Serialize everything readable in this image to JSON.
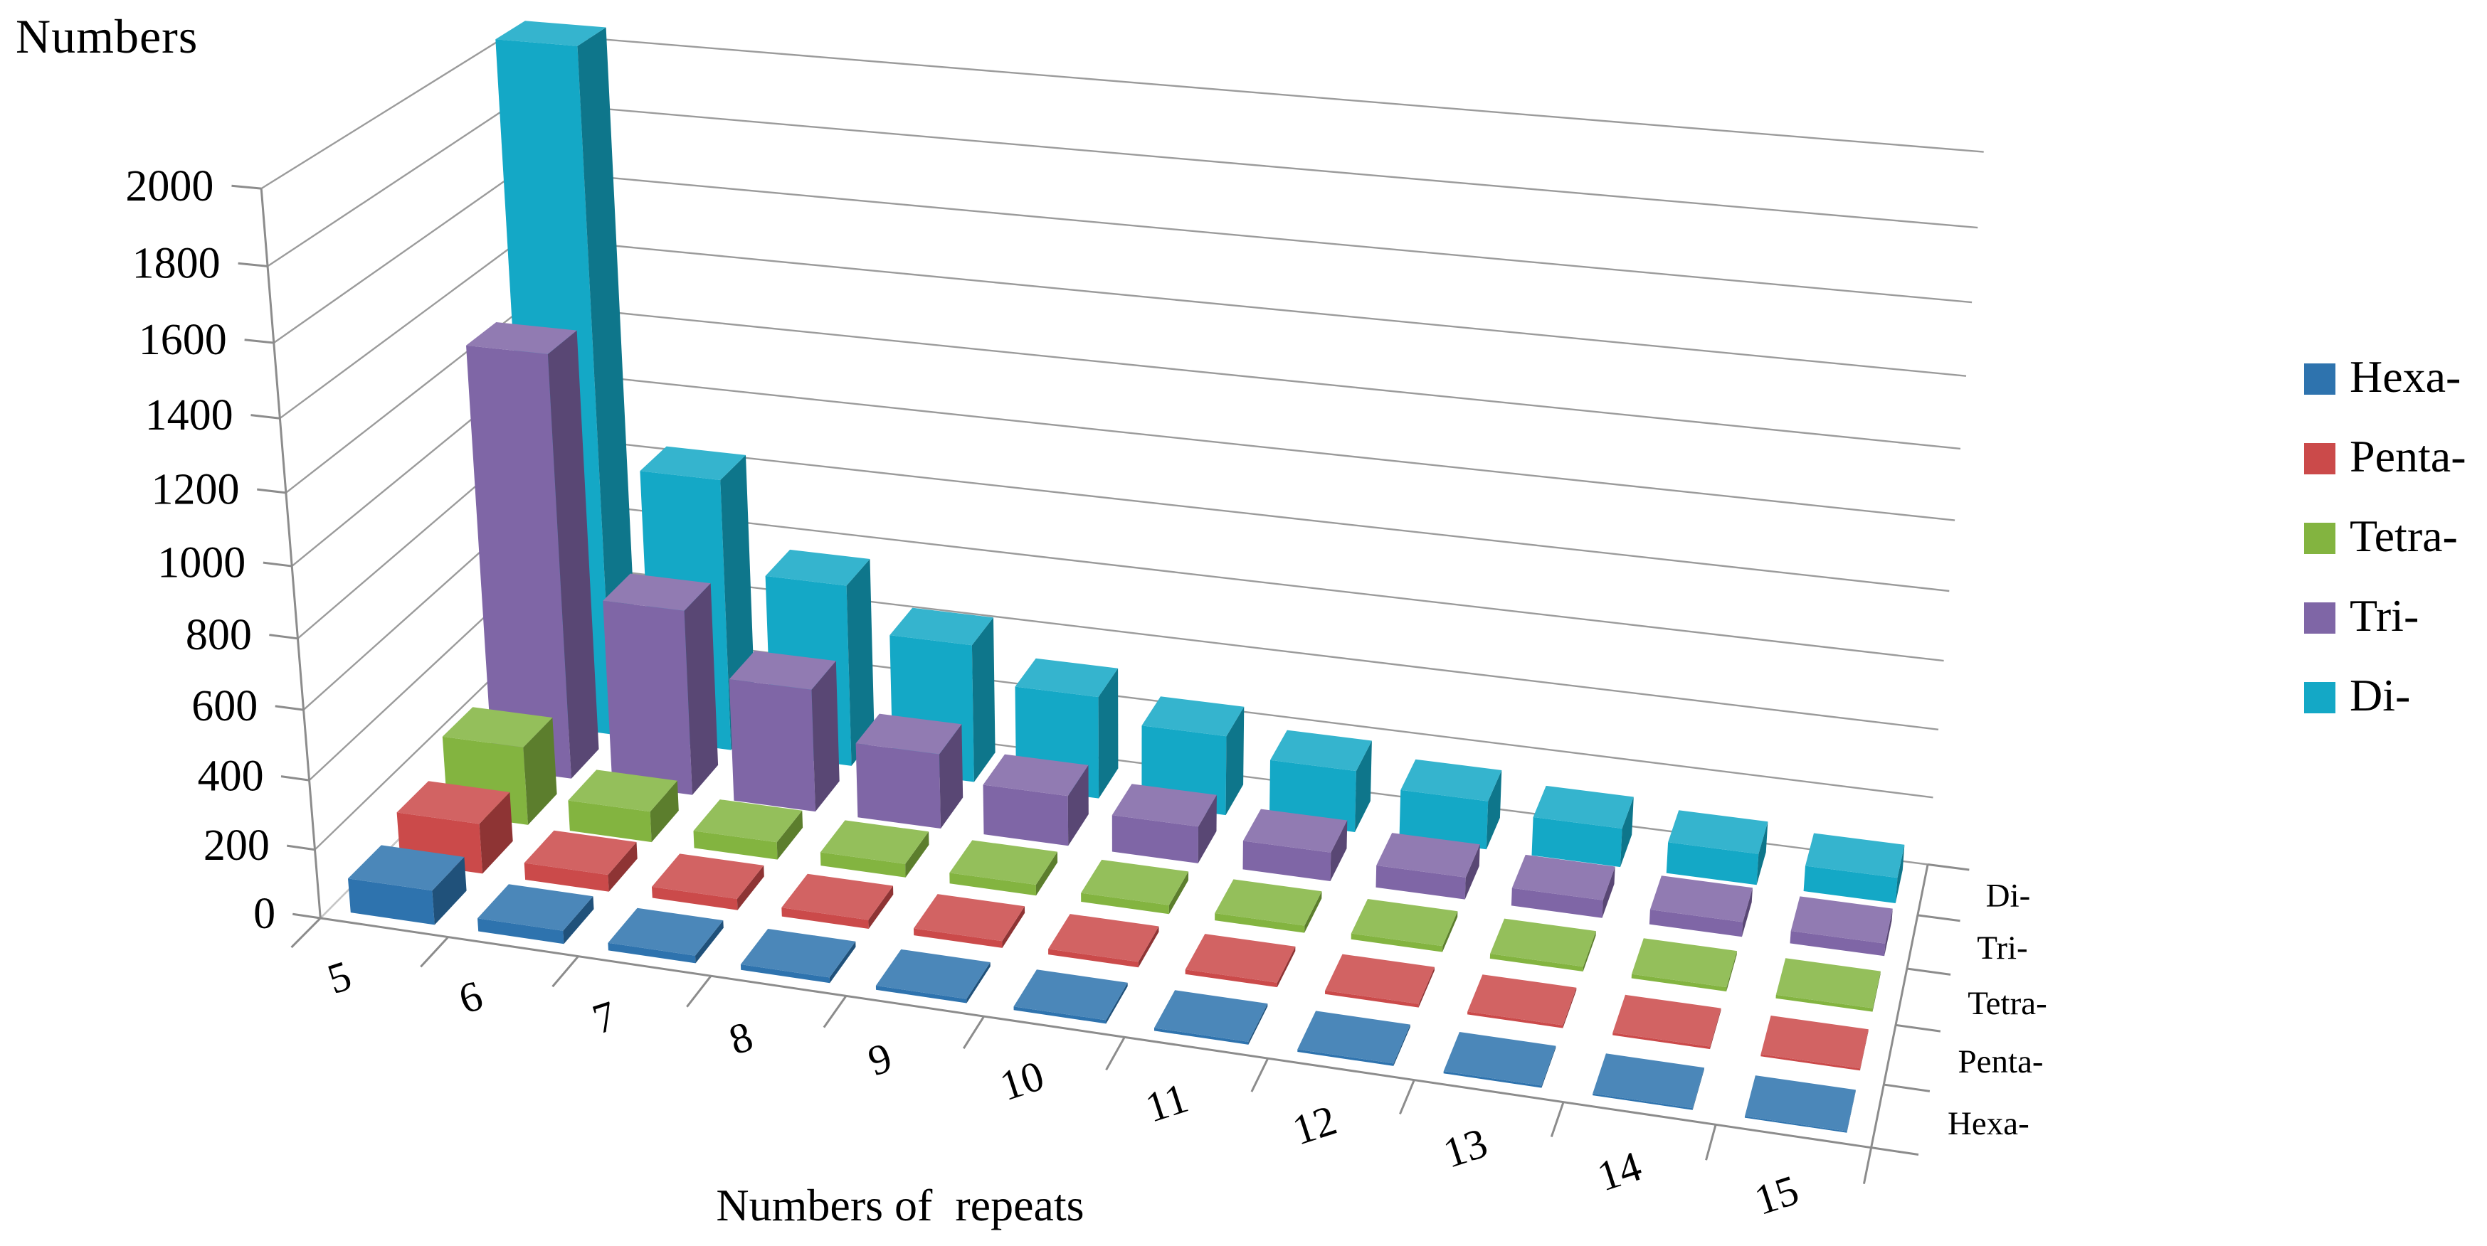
{
  "title": "Numbers",
  "x_axis_title": "Numbers of  repeats",
  "colors": {
    "background": "#FFFFFF",
    "gridline": "#9B9B9B",
    "axis": "#8C8C8C",
    "text": "#000000"
  },
  "legend": {
    "position": "right",
    "items": [
      {
        "label": "Hexa-"
      },
      {
        "label": "Penta-"
      },
      {
        "label": "Tetra-"
      },
      {
        "label": "Tri-"
      },
      {
        "label": "Di-"
      }
    ]
  },
  "chart_data": {
    "type": "bar",
    "projection": "3d-perspective",
    "title": "Numbers",
    "xlabel": "Numbers of  repeats",
    "ylabel": "Numbers",
    "grid": true,
    "legend_position": "right",
    "ylim": [
      0,
      2000
    ],
    "y_tick_step": 200,
    "y_ticks": [
      "0",
      "200",
      "400",
      "600",
      "800",
      "1000",
      "1200",
      "1400",
      "1600",
      "1800",
      "2000"
    ],
    "categories": [
      "5",
      "6",
      "7",
      "8",
      "9",
      "10",
      "11",
      "12",
      "13",
      "14",
      "15"
    ],
    "depth_axis_labels_front_to_back": [
      "Hexa-",
      "Penta-",
      "Tetra-",
      "Tri-",
      "Di-"
    ],
    "series": [
      {
        "name": "Hexa-",
        "color": "#2E73AE",
        "values": [
          100,
          38,
          22,
          16,
          12,
          10,
          8,
          7,
          6,
          5,
          4
        ]
      },
      {
        "name": "Penta-",
        "color": "#CB4A4A",
        "values": [
          148,
          50,
          33,
          26,
          20,
          16,
          13,
          10,
          8,
          7,
          6
        ]
      },
      {
        "name": "Tetra-",
        "color": "#83B440",
        "values": [
          235,
          92,
          52,
          40,
          32,
          26,
          21,
          17,
          14,
          12,
          10
        ]
      },
      {
        "name": "Tri-",
        "color": "#7F66A6",
        "values": [
          1270,
          560,
          370,
          225,
          150,
          110,
          85,
          65,
          52,
          43,
          36
        ]
      },
      {
        "name": "Di-",
        "color": "#14A8C6",
        "values": [
          2050,
          830,
          555,
          420,
          310,
          240,
          185,
          145,
          115,
          92,
          75
        ]
      }
    ],
    "note_values_estimated_from_pixels": true
  }
}
